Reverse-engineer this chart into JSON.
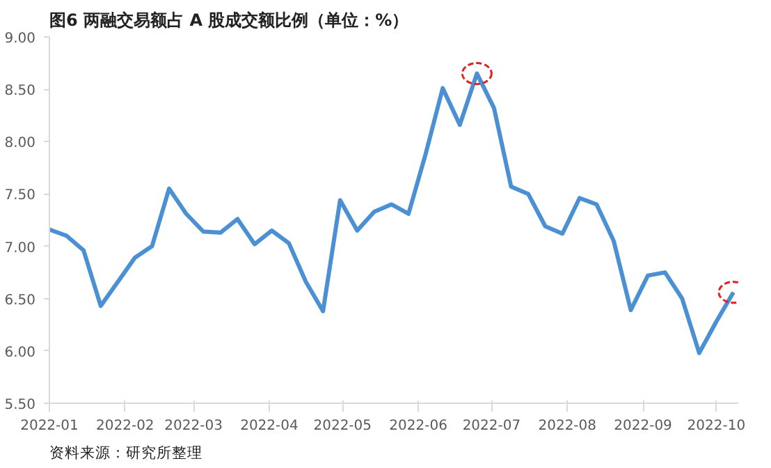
{
  "chart_data": {
    "type": "line",
    "title": "图6  两融交易额占 A 股成交额比例（单位：%）",
    "annotations": [
      "资料来源：研究所整理"
    ],
    "x": [
      "2022-01-01",
      "2022-01-08",
      "2022-01-15",
      "2022-01-22",
      "2022-01-29",
      "2022-02-05",
      "2022-02-12",
      "2022-02-19",
      "2022-02-26",
      "2022-03-05",
      "2022-03-12",
      "2022-03-19",
      "2022-03-26",
      "2022-04-02",
      "2022-04-09",
      "2022-04-16",
      "2022-04-23",
      "2022-04-30",
      "2022-05-07",
      "2022-05-14",
      "2022-05-21",
      "2022-05-28",
      "2022-06-04",
      "2022-06-11",
      "2022-06-18",
      "2022-06-25",
      "2022-07-02",
      "2022-07-09",
      "2022-07-16",
      "2022-07-23",
      "2022-07-30",
      "2022-08-06",
      "2022-08-13",
      "2022-08-20",
      "2022-08-27",
      "2022-09-03",
      "2022-09-10",
      "2022-09-17",
      "2022-09-24",
      "2022-10-01",
      "2022-10-08"
    ],
    "series": [
      {
        "color": "#4a90d2",
        "values": [
          7.16,
          7.1,
          6.96,
          6.43,
          6.66,
          6.89,
          7.0,
          7.55,
          7.31,
          7.14,
          7.13,
          7.26,
          7.02,
          7.15,
          7.03,
          6.66,
          6.38,
          7.44,
          7.15,
          7.33,
          7.4,
          7.31,
          7.88,
          8.51,
          8.16,
          8.65,
          8.32,
          7.57,
          7.5,
          7.19,
          7.12,
          7.46,
          7.4,
          7.05,
          6.39,
          6.72,
          6.75,
          6.5,
          5.98,
          6.28,
          6.56
        ]
      }
    ],
    "xlim": [
      "2022-01-01",
      "2022-10-10"
    ],
    "xticks": [
      {
        "value": "2022-01-01",
        "label": "2022-01"
      },
      {
        "value": "2022-02-01",
        "label": "2022-02"
      },
      {
        "value": "2022-03-01",
        "label": "2022-03"
      },
      {
        "value": "2022-04-01",
        "label": "2022-04"
      },
      {
        "value": "2022-05-01",
        "label": "2022-05"
      },
      {
        "value": "2022-06-01",
        "label": "2022-06"
      },
      {
        "value": "2022-07-01",
        "label": "2022-07"
      },
      {
        "value": "2022-08-01",
        "label": "2022-08"
      },
      {
        "value": "2022-09-01",
        "label": "2022-09"
      },
      {
        "value": "2022-10-01",
        "label": "2022-10"
      }
    ],
    "ylim": [
      5.5,
      9.0
    ],
    "yticks": [
      {
        "value": 5.5,
        "label": "5.50"
      },
      {
        "value": 6.0,
        "label": "6.00"
      },
      {
        "value": 6.5,
        "label": "6.50"
      },
      {
        "value": 7.0,
        "label": "7.00"
      },
      {
        "value": 7.5,
        "label": "7.50"
      },
      {
        "value": 8.0,
        "label": "8.00"
      },
      {
        "value": 8.5,
        "label": "8.50"
      },
      {
        "value": 9.0,
        "label": "9.00"
      }
    ],
    "grid": false,
    "marker": "none",
    "line_style": "solid"
  }
}
